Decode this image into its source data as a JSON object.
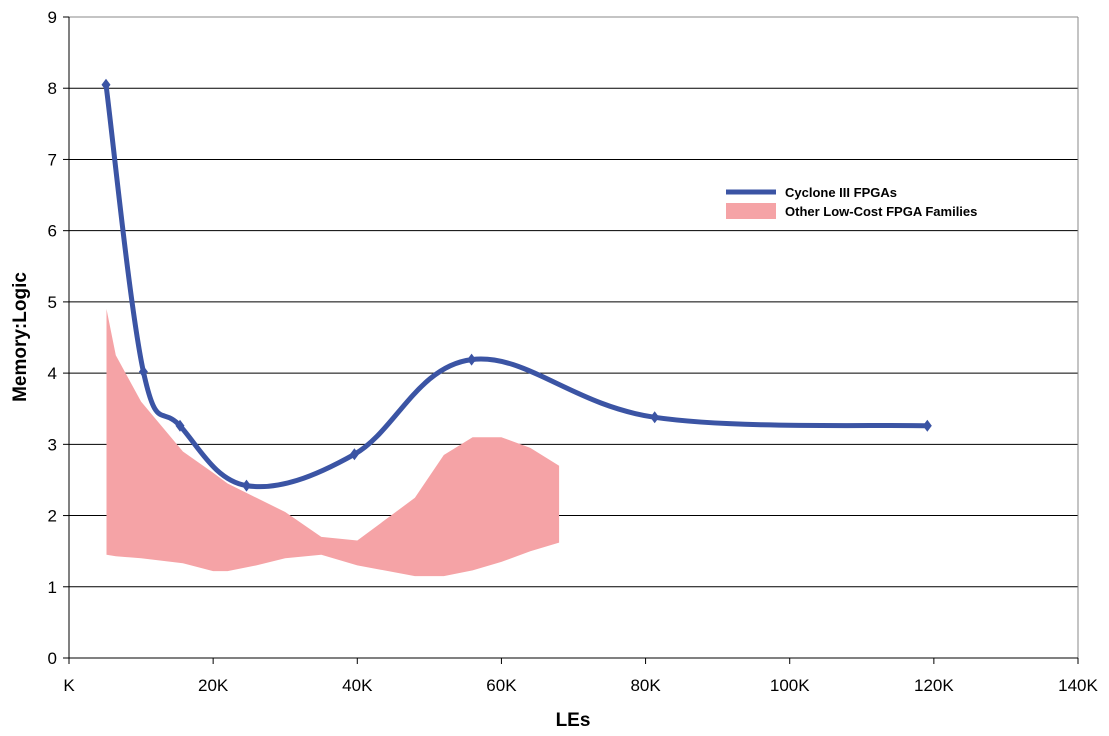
{
  "chart_data": {
    "type": "line",
    "xlabel": "LEs",
    "ylabel": "Memory:Logic",
    "xlim": [
      0,
      140000
    ],
    "ylim": [
      0,
      9
    ],
    "x_ticks": [
      0,
      20000,
      40000,
      60000,
      80000,
      100000,
      120000,
      140000
    ],
    "x_tick_labels": [
      "K",
      "20K",
      "40K",
      "60K",
      "80K",
      "100K",
      "120K",
      "140K"
    ],
    "y_ticks": [
      0,
      1,
      2,
      3,
      4,
      5,
      6,
      7,
      8,
      9
    ],
    "y_tick_labels": [
      "0",
      "1",
      "2",
      "3",
      "4",
      "5",
      "6",
      "7",
      "8",
      "9"
    ],
    "grid": "horizontal",
    "legend_position": "top-right",
    "colors": {
      "line": "#3b54a4",
      "band": "#f5a3a6",
      "grid": "#000000"
    },
    "series": [
      {
        "name": "Cyclone III FPGAs",
        "type": "line",
        "marker": "diamond",
        "x": [
          5136,
          10320,
          15408,
          24624,
          39600,
          55856,
          81264,
          119088
        ],
        "y": [
          8.05,
          4.02,
          3.26,
          2.42,
          2.86,
          4.19,
          3.38,
          3.26
        ]
      },
      {
        "name": "Other Low-Cost FPGA Families",
        "type": "range-area",
        "x": [
          5200,
          6500,
          10000,
          15800,
          20000,
          22000,
          26000,
          30000,
          35000,
          40000,
          48000,
          52000,
          56000,
          60000,
          64000,
          68000
        ],
        "upper": [
          4.9,
          4.25,
          3.6,
          2.9,
          2.6,
          2.45,
          2.25,
          2.05,
          1.7,
          1.65,
          2.25,
          2.85,
          3.1,
          3.1,
          2.95,
          2.7
        ],
        "lower": [
          1.45,
          1.43,
          1.4,
          1.33,
          1.22,
          1.22,
          1.3,
          1.4,
          1.45,
          1.3,
          1.15,
          1.15,
          1.23,
          1.35,
          1.5,
          1.62
        ]
      }
    ]
  }
}
